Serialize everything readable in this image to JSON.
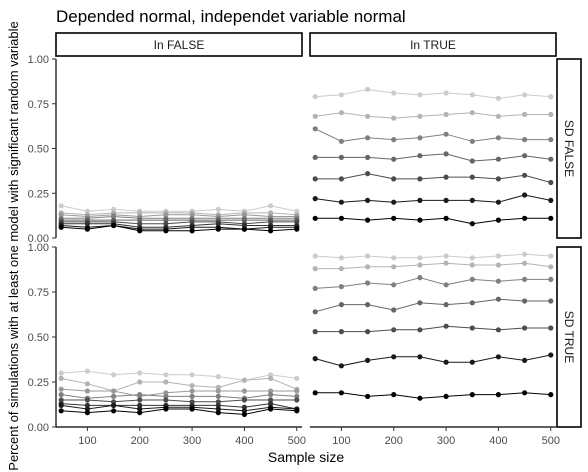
{
  "chart_data": {
    "type": "line",
    "title": "Depended normal, independet variable normal",
    "xlabel": "Sample size",
    "ylabel": "Percent of simulations with at least one model with significant random variable",
    "x": [
      50,
      100,
      150,
      200,
      250,
      300,
      350,
      400,
      450,
      500
    ],
    "x_ticks": [
      100,
      200,
      300,
      400,
      500
    ],
    "x_tick_labels": [
      "100",
      "200",
      "300",
      "400",
      "500"
    ],
    "xlim": [
      40,
      510
    ],
    "ylim": [
      0,
      1
    ],
    "y_ticks": [
      0,
      0.25,
      0.5,
      0.75,
      1
    ],
    "y_tick_labels": [
      "0.00",
      "0.25",
      "0.50",
      "0.75",
      "1.00"
    ],
    "facet_columns": [
      "In FALSE",
      "In TRUE"
    ],
    "facet_rows": [
      "SD FALSE",
      "SD TRUE"
    ],
    "grid": false,
    "legend": "none",
    "series_colors": [
      "#000000",
      "#1a1a1a",
      "#333333",
      "#4d4d4d",
      "#666666",
      "#808080",
      "#999999",
      "#b3b3b3",
      "#cccccc"
    ],
    "panels": [
      {
        "row": "SD FALSE",
        "column": "In FALSE",
        "series": [
          {
            "values": [
              0.06,
              0.05,
              0.07,
              0.04,
              0.04,
              0.04,
              0.05,
              0.05,
              0.04,
              0.05
            ]
          },
          {
            "values": [
              0.07,
              0.06,
              0.07,
              0.05,
              0.05,
              0.06,
              0.06,
              0.05,
              0.06,
              0.06
            ]
          },
          {
            "values": [
              0.08,
              0.08,
              0.08,
              0.06,
              0.06,
              0.07,
              0.08,
              0.07,
              0.07,
              0.07
            ]
          },
          {
            "values": [
              0.09,
              0.09,
              0.09,
              0.08,
              0.08,
              0.09,
              0.09,
              0.08,
              0.09,
              0.09
            ]
          },
          {
            "values": [
              0.1,
              0.1,
              0.1,
              0.1,
              0.1,
              0.1,
              0.1,
              0.1,
              0.1,
              0.1
            ]
          },
          {
            "values": [
              0.11,
              0.11,
              0.12,
              0.11,
              0.11,
              0.11,
              0.11,
              0.11,
              0.11,
              0.11
            ]
          },
          {
            "values": [
              0.13,
              0.12,
              0.13,
              0.12,
              0.13,
              0.13,
              0.12,
              0.13,
              0.12,
              0.12
            ]
          },
          {
            "values": [
              0.14,
              0.13,
              0.14,
              0.14,
              0.14,
              0.14,
              0.13,
              0.14,
              0.14,
              0.13
            ]
          },
          {
            "values": [
              0.18,
              0.15,
              0.16,
              0.15,
              0.15,
              0.15,
              0.16,
              0.15,
              0.18,
              0.15
            ]
          }
        ]
      },
      {
        "row": "SD FALSE",
        "column": "In TRUE",
        "series": [
          {
            "values": [
              0.11,
              0.11,
              0.1,
              0.11,
              0.1,
              0.11,
              0.08,
              0.1,
              0.11,
              0.11
            ]
          },
          {
            "values": [
              0.22,
              0.2,
              0.21,
              0.2,
              0.21,
              0.21,
              0.21,
              0.2,
              0.24,
              0.21
            ]
          },
          {
            "values": [
              0.33,
              0.33,
              0.36,
              0.33,
              0.33,
              0.34,
              0.34,
              0.33,
              0.35,
              0.31
            ]
          },
          {
            "values": [
              0.45,
              0.45,
              0.45,
              0.44,
              0.46,
              0.47,
              0.43,
              0.44,
              0.46,
              0.44
            ]
          },
          {
            "values": [
              0.61,
              0.54,
              0.56,
              0.55,
              0.56,
              0.58,
              0.54,
              0.56,
              0.55,
              0.55
            ]
          },
          {
            "values": [
              0.68,
              0.7,
              0.68,
              0.67,
              0.68,
              0.69,
              0.7,
              0.68,
              0.69,
              0.69
            ]
          },
          {
            "values": [
              0.79,
              0.8,
              0.83,
              0.81,
              0.8,
              0.81,
              0.8,
              0.78,
              0.8,
              0.79
            ]
          }
        ]
      },
      {
        "row": "SD TRUE",
        "column": "In FALSE",
        "series": [
          {
            "values": [
              0.09,
              0.08,
              0.09,
              0.08,
              0.1,
              0.1,
              0.08,
              0.07,
              0.1,
              0.09
            ]
          },
          {
            "values": [
              0.12,
              0.1,
              0.12,
              0.1,
              0.11,
              0.11,
              0.1,
              0.09,
              0.11,
              0.1
            ]
          },
          {
            "values": [
              0.13,
              0.12,
              0.12,
              0.12,
              0.12,
              0.12,
              0.12,
              0.11,
              0.13,
              0.1
            ]
          },
          {
            "values": [
              0.15,
              0.15,
              0.14,
              0.15,
              0.15,
              0.14,
              0.14,
              0.15,
              0.15,
              0.15
            ]
          },
          {
            "values": [
              0.18,
              0.16,
              0.17,
              0.18,
              0.17,
              0.17,
              0.17,
              0.16,
              0.18,
              0.17
            ]
          },
          {
            "values": [
              0.21,
              0.2,
              0.2,
              0.17,
              0.19,
              0.2,
              0.2,
              0.2,
              0.2,
              0.2
            ]
          },
          {
            "values": [
              0.27,
              0.24,
              0.2,
              0.25,
              0.25,
              0.23,
              0.22,
              0.26,
              0.27,
              0.21
            ]
          },
          {
            "values": [
              0.3,
              0.31,
              0.29,
              0.3,
              0.29,
              0.29,
              0.28,
              0.26,
              0.29,
              0.27
            ]
          }
        ]
      },
      {
        "row": "SD TRUE",
        "column": "In TRUE",
        "series": [
          {
            "values": [
              0.19,
              0.19,
              0.17,
              0.18,
              0.16,
              0.17,
              0.18,
              0.18,
              0.19,
              0.18
            ]
          },
          {
            "values": [
              0.38,
              0.34,
              0.37,
              0.39,
              0.39,
              0.36,
              0.36,
              0.39,
              0.37,
              0.4
            ]
          },
          {
            "values": [
              0.53,
              0.53,
              0.53,
              0.54,
              0.54,
              0.56,
              0.55,
              0.54,
              0.55,
              0.55
            ]
          },
          {
            "values": [
              0.64,
              0.68,
              0.68,
              0.65,
              0.69,
              0.68,
              0.69,
              0.71,
              0.7,
              0.7
            ]
          },
          {
            "values": [
              0.77,
              0.78,
              0.8,
              0.79,
              0.83,
              0.79,
              0.82,
              0.81,
              0.82,
              0.82
            ]
          },
          {
            "values": [
              0.88,
              0.88,
              0.89,
              0.89,
              0.9,
              0.91,
              0.9,
              0.9,
              0.91,
              0.89
            ]
          },
          {
            "values": [
              0.95,
              0.94,
              0.95,
              0.94,
              0.94,
              0.95,
              0.94,
              0.95,
              0.96,
              0.95
            ]
          }
        ]
      }
    ]
  }
}
